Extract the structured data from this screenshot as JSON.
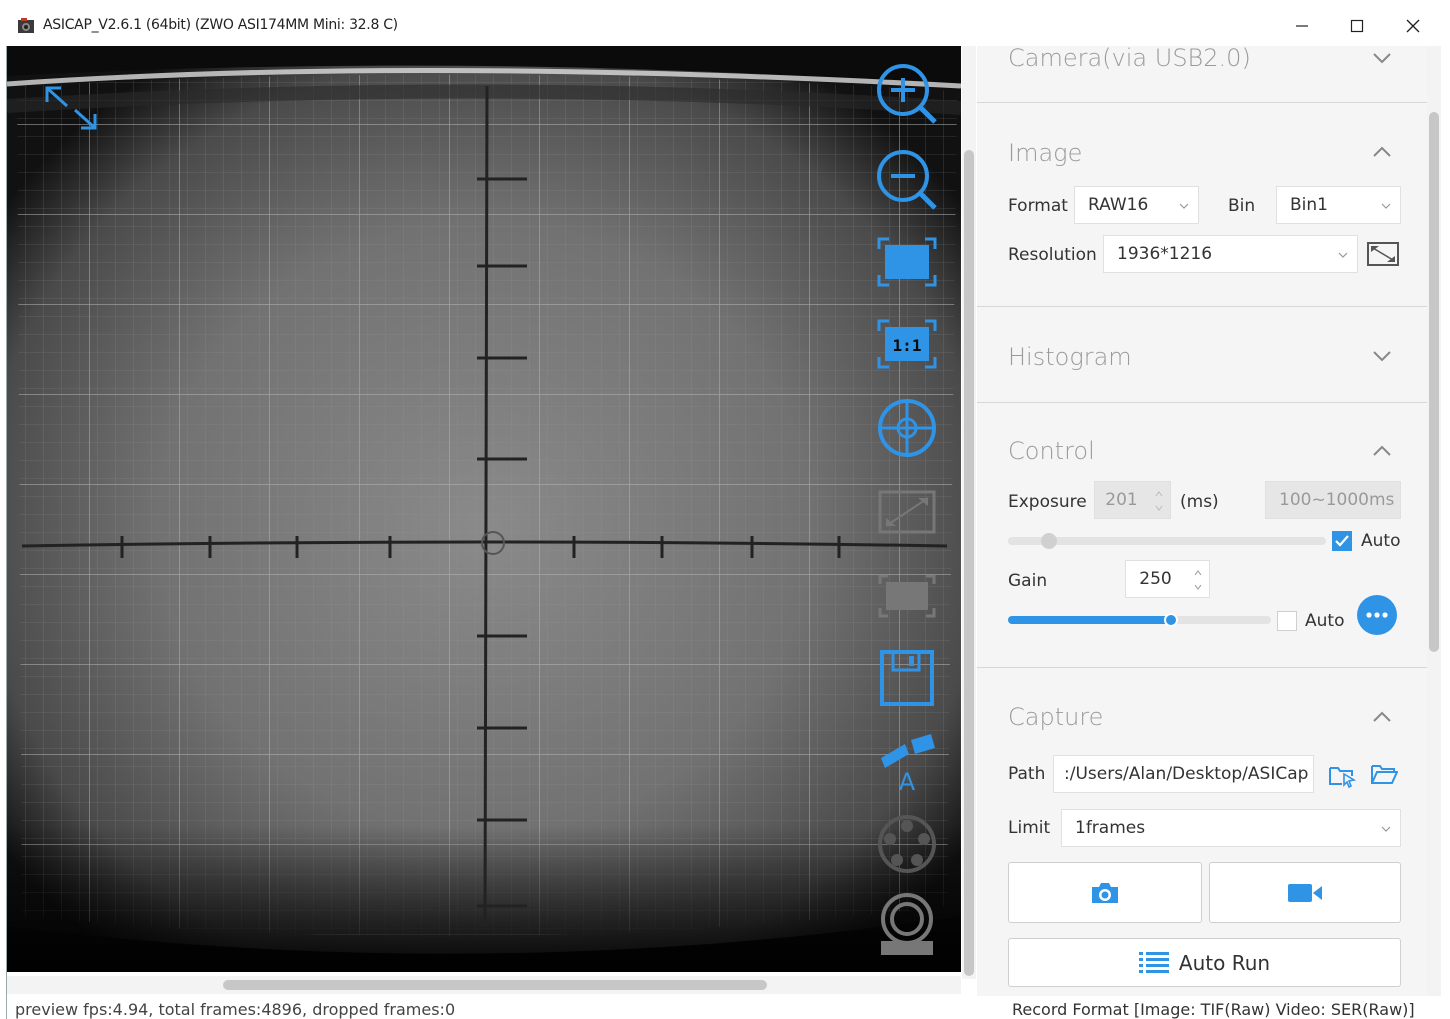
{
  "window": {
    "title": "ASICAP_V2.6.1 (64bit) (ZWO ASI174MM Mini: 32.8 C)",
    "icon": "camera-app-icon",
    "controls": [
      "minimize-icon",
      "maximize-icon",
      "close-icon"
    ]
  },
  "preview": {
    "toolbar": [
      {
        "name": "zoom-in-icon",
        "enabled": true
      },
      {
        "name": "zoom-out-icon",
        "enabled": true
      },
      {
        "name": "fit-window-icon",
        "enabled": true
      },
      {
        "name": "actual-size-icon",
        "label": "1:1",
        "enabled": true
      },
      {
        "name": "crosshair-icon",
        "enabled": true
      },
      {
        "name": "roi-select-icon",
        "enabled": false
      },
      {
        "name": "dark-frame-icon",
        "enabled": false
      },
      {
        "name": "save-icon",
        "enabled": true
      },
      {
        "name": "telescope-icon",
        "label": "A",
        "enabled": true
      },
      {
        "name": "filter-wheel-icon",
        "enabled": false
      },
      {
        "name": "focuser-icon",
        "enabled": false
      }
    ],
    "accent": "#2f93e6"
  },
  "status": {
    "text": "preview fps:4.94, total frames:4896, dropped frames:0",
    "record_format": "Record Format [Image: TIF(Raw) Video: SER(Raw)]"
  },
  "panel": {
    "camera": {
      "title": "Camera(via USB2.0)",
      "expanded": false
    },
    "image": {
      "title": "Image",
      "expanded": true,
      "format_label": "Format",
      "format_value": "RAW16",
      "bin_label": "Bin",
      "bin_value": "Bin1",
      "resolution_label": "Resolution",
      "resolution_value": "1936*1216"
    },
    "histogram": {
      "title": "Histogram",
      "expanded": false
    },
    "control": {
      "title": "Control",
      "expanded": true,
      "exposure_label": "Exposure",
      "exposure_value": "201",
      "exposure_unit": "(ms)",
      "exposure_range": "100~1000ms",
      "exposure_auto_label": "Auto",
      "exposure_auto": true,
      "exposure_slider": 0.13,
      "gain_label": "Gain",
      "gain_value": "250",
      "gain_auto_label": "Auto",
      "gain_auto": false,
      "gain_slider": 0.62
    },
    "capture": {
      "title": "Capture",
      "expanded": true,
      "path_label": "Path",
      "path_value": ":/Users/Alan/Desktop/ASICap",
      "limit_label": "Limit",
      "limit_value": "1frames",
      "auto_run_label": "Auto Run"
    }
  }
}
